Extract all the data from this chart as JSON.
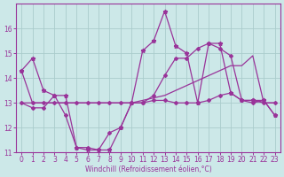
{
  "xlabel": "Windchill (Refroidissement éolien,°C)",
  "background_color": "#cce8e8",
  "grid_color": "#aacccc",
  "line_color": "#993399",
  "x_hours": [
    0,
    1,
    2,
    3,
    4,
    5,
    6,
    7,
    8,
    9,
    10,
    11,
    12,
    13,
    14,
    15,
    16,
    17,
    18,
    19,
    20,
    21,
    22,
    23
  ],
  "line1": [
    14.3,
    14.8,
    13.5,
    13.3,
    13.3,
    11.2,
    11.1,
    11.1,
    11.1,
    12.0,
    13.0,
    15.1,
    15.5,
    16.7,
    15.3,
    15.0,
    13.0,
    15.4,
    15.4,
    13.4,
    13.1,
    13.1,
    13.1,
    12.5
  ],
  "line2": [
    13.0,
    12.8,
    12.8,
    13.3,
    12.5,
    11.2,
    11.2,
    11.1,
    11.8,
    12.0,
    13.0,
    13.0,
    13.1,
    13.1,
    13.0,
    13.0,
    13.0,
    13.1,
    13.3,
    13.4,
    13.1,
    13.0,
    13.1,
    12.5
  ],
  "line3": [
    13.0,
    13.0,
    13.0,
    13.0,
    13.0,
    13.0,
    13.0,
    13.0,
    13.0,
    13.0,
    13.0,
    13.1,
    13.2,
    13.3,
    13.5,
    13.7,
    13.9,
    14.1,
    14.3,
    14.5,
    14.5,
    14.9,
    13.0,
    13.0
  ],
  "line4": [
    14.3,
    13.0,
    13.0,
    13.0,
    13.0,
    13.0,
    13.0,
    13.0,
    13.0,
    13.0,
    13.0,
    13.0,
    13.3,
    14.1,
    14.8,
    14.8,
    15.2,
    15.4,
    15.2,
    14.9,
    13.1,
    13.1,
    13.0,
    13.0
  ],
  "ylim": [
    11.0,
    17.0
  ],
  "yticks": [
    11,
    12,
    13,
    14,
    15,
    16
  ],
  "xticks": [
    0,
    1,
    2,
    3,
    4,
    5,
    6,
    7,
    8,
    9,
    10,
    11,
    12,
    13,
    14,
    15,
    16,
    17,
    18,
    19,
    20,
    21,
    22,
    23
  ]
}
